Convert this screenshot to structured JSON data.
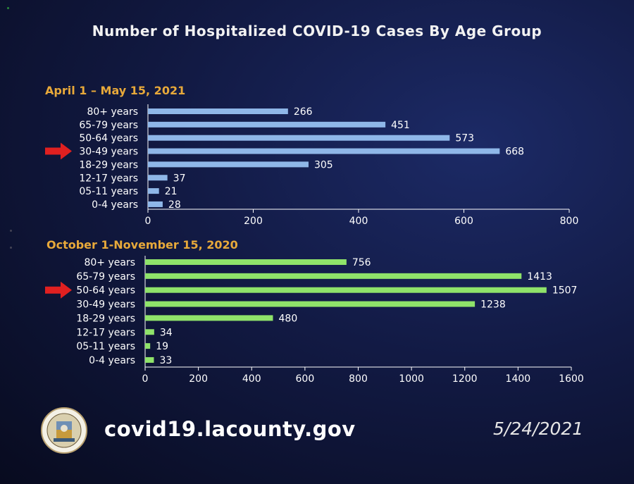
{
  "title": "Number of Hospitalized COVID-19 Cases By Age Group",
  "footer": {
    "url": "covid19.lacounty.gov",
    "date": "5/24/2021"
  },
  "colors": {
    "bar_2021": "#8fb7e8",
    "bar_2020": "#8fe36a",
    "section_title": "#e8a93a",
    "arrow": "#e02020"
  },
  "icons": {
    "seal": "county-seal-icon",
    "arrow": "red-arrow-icon"
  },
  "chart_data": [
    {
      "type": "bar",
      "orientation": "horizontal",
      "title": "April 1 – May 15, 2021",
      "categories": [
        "80+ years",
        "65-79 years",
        "50-64 years",
        "30-49 years",
        "18-29 years",
        "12-17 years",
        "05-11 years",
        "0-4 years"
      ],
      "values": [
        266,
        451,
        573,
        668,
        305,
        37,
        21,
        28
      ],
      "xlim": [
        0,
        800
      ],
      "xticks": [
        0,
        200,
        400,
        600,
        800
      ],
      "highlight": "30-49 years",
      "grid": false,
      "legend": "none"
    },
    {
      "type": "bar",
      "orientation": "horizontal",
      "title": "October 1-November 15, 2020",
      "categories": [
        "80+ years",
        "65-79 years",
        "50-64 years",
        "30-49 years",
        "18-29 years",
        "12-17 years",
        "05-11 years",
        "0-4 years"
      ],
      "values": [
        756,
        1413,
        1507,
        1238,
        480,
        34,
        19,
        33
      ],
      "xlim": [
        0,
        1600
      ],
      "xticks": [
        0,
        200,
        400,
        600,
        800,
        1000,
        1200,
        1400,
        1600
      ],
      "highlight": "50-64 years",
      "grid": false,
      "legend": "none"
    }
  ]
}
